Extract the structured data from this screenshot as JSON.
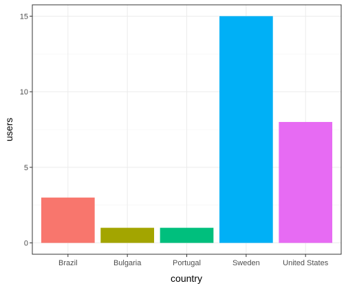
{
  "chart_data": {
    "type": "bar",
    "categories": [
      "Brazil",
      "Bulgaria",
      "Portugal",
      "Sweden",
      "United States"
    ],
    "values": [
      3,
      1,
      1,
      15,
      8
    ],
    "colors": [
      "#F8766D",
      "#A3A500",
      "#00BF7D",
      "#00B0F6",
      "#E76BF3"
    ],
    "xlabel": "country",
    "ylabel": "users",
    "ylim": [
      0,
      15.7
    ],
    "yticks": [
      0,
      5,
      10,
      15
    ],
    "ytick_labels": [
      "0",
      "5",
      "10",
      "15"
    ],
    "grid": true
  }
}
